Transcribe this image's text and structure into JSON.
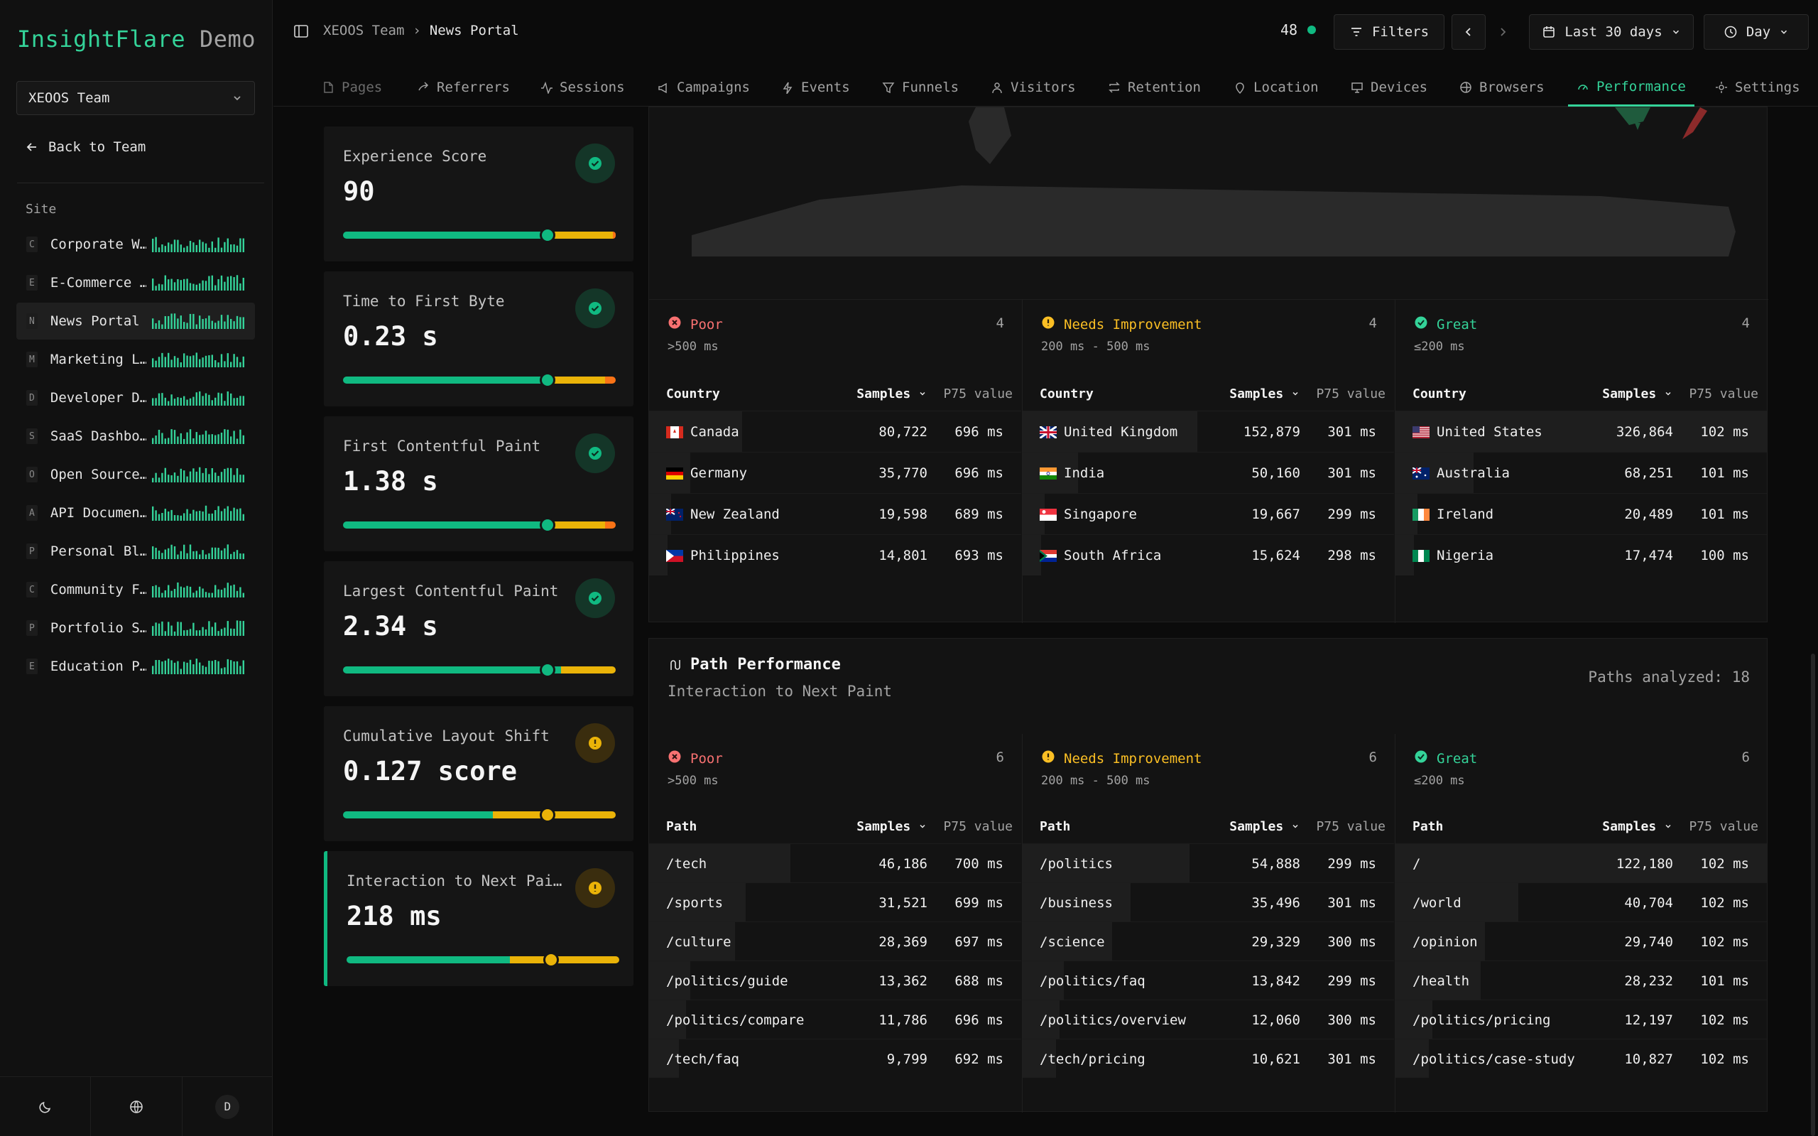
{
  "brand": {
    "name": "InsightFlare",
    "suffix": "Demo"
  },
  "team_select": "XEOOS Team",
  "back_link": "Back to Team",
  "site_label": "Site",
  "sites": [
    {
      "initial": "C",
      "name": "Corporate W…"
    },
    {
      "initial": "E",
      "name": "E-Commerce …"
    },
    {
      "initial": "N",
      "name": "News Portal"
    },
    {
      "initial": "M",
      "name": "Marketing L…"
    },
    {
      "initial": "D",
      "name": "Developer D…"
    },
    {
      "initial": "S",
      "name": "SaaS Dashbo…"
    },
    {
      "initial": "O",
      "name": "Open Source…"
    },
    {
      "initial": "A",
      "name": "API Documen…"
    },
    {
      "initial": "P",
      "name": "Personal Bl…"
    },
    {
      "initial": "C",
      "name": "Community F…"
    },
    {
      "initial": "P",
      "name": "Portfolio S…"
    },
    {
      "initial": "E",
      "name": "Education P…"
    }
  ],
  "active_site_index": 2,
  "avatar_letter": "D",
  "breadcrumb": {
    "team": "XEOOS Team",
    "sep": "›",
    "page": "News Portal"
  },
  "online_count": "48",
  "toolbar": {
    "filters": "Filters",
    "range": "Last 30 days",
    "granularity": "Day"
  },
  "tabs": [
    {
      "label": "Pages",
      "icon": "file-icon"
    },
    {
      "label": "Referrers",
      "icon": "share-icon"
    },
    {
      "label": "Sessions",
      "icon": "activity-icon"
    },
    {
      "label": "Campaigns",
      "icon": "megaphone-icon"
    },
    {
      "label": "Events",
      "icon": "zap-icon"
    },
    {
      "label": "Funnels",
      "icon": "funnel-icon"
    },
    {
      "label": "Visitors",
      "icon": "user-icon"
    },
    {
      "label": "Retention",
      "icon": "repeat-icon"
    },
    {
      "label": "Location",
      "icon": "pin-icon"
    },
    {
      "label": "Devices",
      "icon": "monitor-icon"
    },
    {
      "label": "Browsers",
      "icon": "globe-icon"
    },
    {
      "label": "Performance",
      "icon": "gauge-icon"
    },
    {
      "label": "Settings",
      "icon": "gear-icon"
    }
  ],
  "active_tab": "Performance",
  "metrics": [
    {
      "title": "Experience Score",
      "value": "90",
      "status": "good",
      "marker": 0.75
    },
    {
      "title": "Time to First Byte",
      "value": "0.23 s",
      "status": "good",
      "marker": 0.75
    },
    {
      "title": "First Contentful Paint",
      "value": "1.38 s",
      "status": "good",
      "marker": 0.75
    },
    {
      "title": "Largest Contentful Paint",
      "value": "2.34 s",
      "status": "good",
      "marker": 0.75
    },
    {
      "title": "Cumulative Layout Shift",
      "value": "0.127 score",
      "status": "needs-improvement",
      "marker": 0.75
    },
    {
      "title": "Interaction to Next Pai…",
      "value": "218 ms",
      "status": "needs-improvement",
      "marker": 0.75
    }
  ],
  "colors": {
    "good": "#10b981",
    "needs": "#eab308",
    "poor": "#f97316"
  },
  "table_headers": {
    "samples": "Samples",
    "p75": "P75 value",
    "country": "Country",
    "path": "Path"
  },
  "country_panel": {
    "columns": [
      {
        "label": "Poor",
        "count": "4",
        "range": ">500 ms",
        "kind": "poor",
        "rows": [
          {
            "name": "Canada",
            "flag": "ca",
            "samples": "80,722",
            "p75": "696 ms",
            "share": 0.25
          },
          {
            "name": "Germany",
            "flag": "de",
            "samples": "35,770",
            "p75": "696 ms",
            "share": 0.11
          },
          {
            "name": "New Zealand",
            "flag": "nz",
            "samples": "19,598",
            "p75": "689 ms",
            "share": 0.06
          },
          {
            "name": "Philippines",
            "flag": "ph",
            "samples": "14,801",
            "p75": "693 ms",
            "share": 0.05
          }
        ]
      },
      {
        "label": "Needs Improvement",
        "count": "4",
        "range": "200 ms - 500 ms",
        "kind": "ni",
        "rows": [
          {
            "name": "United Kingdom",
            "flag": "gb",
            "samples": "152,879",
            "p75": "301 ms",
            "share": 0.47
          },
          {
            "name": "India",
            "flag": "in",
            "samples": "50,160",
            "p75": "301 ms",
            "share": 0.15
          },
          {
            "name": "Singapore",
            "flag": "sg",
            "samples": "19,667",
            "p75": "299 ms",
            "share": 0.06
          },
          {
            "name": "South Africa",
            "flag": "za",
            "samples": "15,624",
            "p75": "298 ms",
            "share": 0.05
          }
        ]
      },
      {
        "label": "Great",
        "count": "4",
        "range": "≤200 ms",
        "kind": "great",
        "rows": [
          {
            "name": "United States",
            "flag": "us",
            "samples": "326,864",
            "p75": "102 ms",
            "share": 1.0
          },
          {
            "name": "Australia",
            "flag": "au",
            "samples": "68,251",
            "p75": "101 ms",
            "share": 0.21
          },
          {
            "name": "Ireland",
            "flag": "ie",
            "samples": "20,489",
            "p75": "101 ms",
            "share": 0.06
          },
          {
            "name": "Nigeria",
            "flag": "ng",
            "samples": "17,474",
            "p75": "100 ms",
            "share": 0.05
          }
        ]
      }
    ]
  },
  "path_panel": {
    "title": "Path Performance",
    "subtitle": "Interaction to Next Paint",
    "analyzed": "Paths analyzed: 18",
    "columns": [
      {
        "label": "Poor",
        "count": "6",
        "range": ">500 ms",
        "kind": "poor",
        "rows": [
          {
            "name": "/tech",
            "samples": "46,186",
            "p75": "700 ms",
            "share": 0.38
          },
          {
            "name": "/sports",
            "samples": "31,521",
            "p75": "699 ms",
            "share": 0.26
          },
          {
            "name": "/culture",
            "samples": "28,369",
            "p75": "697 ms",
            "share": 0.23
          },
          {
            "name": "/politics/guide",
            "samples": "13,362",
            "p75": "688 ms",
            "share": 0.11
          },
          {
            "name": "/politics/compare",
            "samples": "11,786",
            "p75": "696 ms",
            "share": 0.1
          },
          {
            "name": "/tech/faq",
            "samples": "9,799",
            "p75": "692 ms",
            "share": 0.08
          }
        ]
      },
      {
        "label": "Needs Improvement",
        "count": "6",
        "range": "200 ms - 500 ms",
        "kind": "ni",
        "rows": [
          {
            "name": "/politics",
            "samples": "54,888",
            "p75": "299 ms",
            "share": 0.45
          },
          {
            "name": "/business",
            "samples": "35,496",
            "p75": "301 ms",
            "share": 0.29
          },
          {
            "name": "/science",
            "samples": "29,329",
            "p75": "300 ms",
            "share": 0.24
          },
          {
            "name": "/politics/faq",
            "samples": "13,842",
            "p75": "299 ms",
            "share": 0.11
          },
          {
            "name": "/politics/overview",
            "samples": "12,060",
            "p75": "300 ms",
            "share": 0.1
          },
          {
            "name": "/tech/pricing",
            "samples": "10,621",
            "p75": "301 ms",
            "share": 0.09
          }
        ]
      },
      {
        "label": "Great",
        "count": "6",
        "range": "≤200 ms",
        "kind": "great",
        "rows": [
          {
            "name": "/",
            "samples": "122,180",
            "p75": "102 ms",
            "share": 1.0
          },
          {
            "name": "/world",
            "samples": "40,704",
            "p75": "102 ms",
            "share": 0.33
          },
          {
            "name": "/opinion",
            "samples": "29,740",
            "p75": "102 ms",
            "share": 0.24
          },
          {
            "name": "/health",
            "samples": "28,232",
            "p75": "101 ms",
            "share": 0.23
          },
          {
            "name": "/politics/pricing",
            "samples": "12,197",
            "p75": "102 ms",
            "share": 0.1
          },
          {
            "name": "/politics/case-study",
            "samples": "10,827",
            "p75": "102 ms",
            "share": 0.09
          }
        ]
      }
    ]
  }
}
